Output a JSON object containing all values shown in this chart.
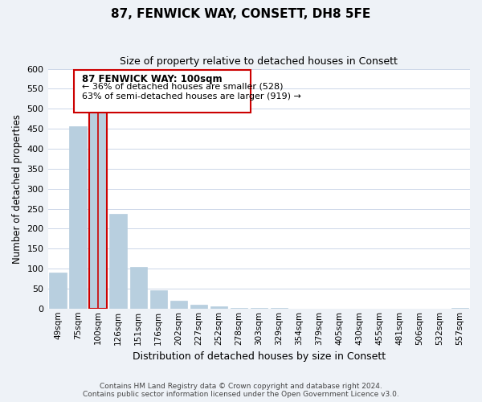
{
  "title": "87, FENWICK WAY, CONSETT, DH8 5FE",
  "subtitle": "Size of property relative to detached houses in Consett",
  "xlabel": "Distribution of detached houses by size in Consett",
  "ylabel": "Number of detached properties",
  "bar_labels": [
    "49sqm",
    "75sqm",
    "100sqm",
    "126sqm",
    "151sqm",
    "176sqm",
    "202sqm",
    "227sqm",
    "252sqm",
    "278sqm",
    "303sqm",
    "329sqm",
    "354sqm",
    "379sqm",
    "405sqm",
    "430sqm",
    "455sqm",
    "481sqm",
    "506sqm",
    "532sqm",
    "557sqm"
  ],
  "bar_values": [
    90,
    457,
    500,
    237,
    105,
    45,
    20,
    10,
    5,
    2,
    1,
    1,
    0,
    0,
    0,
    0,
    0,
    0,
    0,
    0,
    2
  ],
  "bar_color": "#b8cfdf",
  "highlight_bar_index": 2,
  "highlight_color": "#cc0000",
  "ylim": [
    0,
    600
  ],
  "yticks": [
    0,
    50,
    100,
    150,
    200,
    250,
    300,
    350,
    400,
    450,
    500,
    550,
    600
  ],
  "annotation_title": "87 FENWICK WAY: 100sqm",
  "annotation_line1": "← 36% of detached houses are smaller (528)",
  "annotation_line2": "63% of semi-detached houses are larger (919) →",
  "annotation_box_color": "#cc0000",
  "footer_line1": "Contains HM Land Registry data © Crown copyright and database right 2024.",
  "footer_line2": "Contains public sector information licensed under the Open Government Licence v3.0.",
  "bg_color": "#eef2f7",
  "plot_bg_color": "#ffffff",
  "grid_color": "#ccd6e8"
}
